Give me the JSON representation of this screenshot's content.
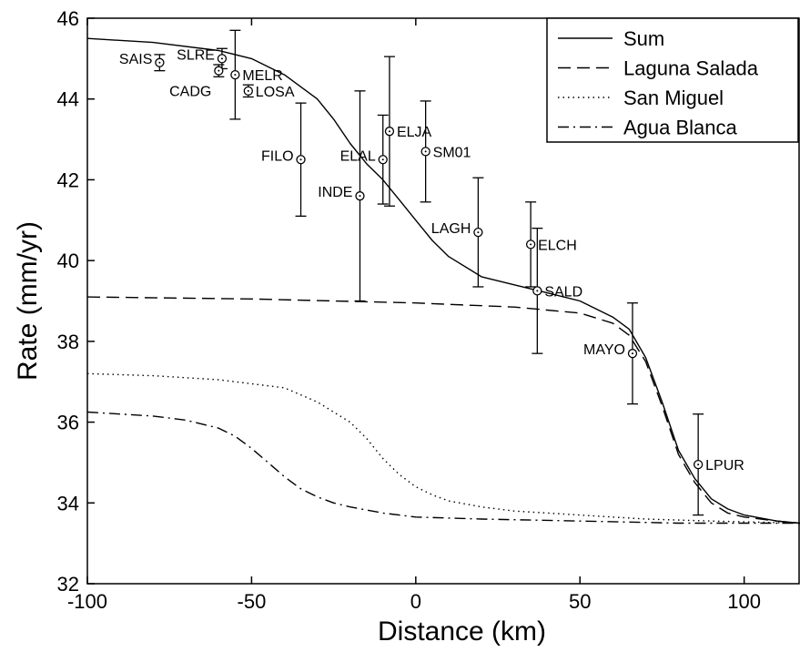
{
  "chart_data": {
    "type": "line",
    "title": "",
    "xlabel": "Distance (km)",
    "ylabel": "Rate (mm/yr)",
    "xlim": [
      -100,
      117
    ],
    "ylim": [
      32,
      46
    ],
    "xticks": [
      -100,
      -50,
      0,
      50,
      100
    ],
    "yticks": [
      32,
      34,
      36,
      38,
      40,
      42,
      44,
      46
    ],
    "grid": false,
    "legend_placement": "top-right",
    "series": [
      {
        "name": "Sum",
        "style": "solid",
        "x": [
          -100,
          -80,
          -60,
          -50,
          -40,
          -30,
          -25,
          -20,
          -15,
          -10,
          -5,
          0,
          5,
          10,
          20,
          30,
          40,
          50,
          60,
          65,
          70,
          75,
          80,
          85,
          90,
          95,
          100,
          110,
          117
        ],
        "y": [
          45.5,
          45.4,
          45.2,
          45.0,
          44.6,
          44.0,
          43.5,
          42.9,
          42.4,
          42.0,
          41.5,
          41.0,
          40.5,
          40.1,
          39.6,
          39.4,
          39.2,
          39.0,
          38.6,
          38.3,
          37.6,
          36.5,
          35.3,
          34.6,
          34.1,
          33.85,
          33.7,
          33.55,
          33.5
        ]
      },
      {
        "name": "Laguna Salada",
        "style": "dashed",
        "x": [
          -100,
          -50,
          0,
          30,
          50,
          60,
          65,
          70,
          75,
          80,
          85,
          90,
          95,
          100,
          110,
          117
        ],
        "y": [
          39.1,
          39.05,
          38.95,
          38.85,
          38.7,
          38.45,
          38.15,
          37.5,
          36.4,
          35.2,
          34.5,
          34.0,
          33.75,
          33.65,
          33.55,
          33.5
        ]
      },
      {
        "name": "San Miguel",
        "style": "dotted",
        "x": [
          -100,
          -80,
          -60,
          -40,
          -30,
          -20,
          -15,
          -10,
          -5,
          0,
          5,
          10,
          20,
          30,
          50,
          70,
          90,
          117
        ],
        "y": [
          37.2,
          37.15,
          37.05,
          36.85,
          36.5,
          36.0,
          35.6,
          35.1,
          34.7,
          34.4,
          34.2,
          34.05,
          33.9,
          33.8,
          33.7,
          33.6,
          33.55,
          33.5
        ]
      },
      {
        "name": "Agua Blanca",
        "style": "dashdot",
        "x": [
          -100,
          -80,
          -70,
          -60,
          -55,
          -50,
          -45,
          -40,
          -35,
          -30,
          -25,
          -20,
          -10,
          0,
          20,
          50,
          80,
          117
        ],
        "y": [
          36.25,
          36.15,
          36.05,
          35.85,
          35.65,
          35.35,
          35.0,
          34.65,
          34.35,
          34.15,
          34.0,
          33.9,
          33.75,
          33.65,
          33.6,
          33.55,
          33.5,
          33.5
        ]
      }
    ],
    "stations": [
      {
        "name": "SAIS",
        "x": -78,
        "y": 44.9,
        "err": 0.2,
        "label_side": "left"
      },
      {
        "name": "SLRE",
        "x": -59,
        "y": 45.0,
        "err": 0.25,
        "label_side": "left"
      },
      {
        "name": "CADG",
        "x": -60,
        "y": 44.7,
        "err": 0.15,
        "label_side": "left-below"
      },
      {
        "name": "MELR",
        "x": -55,
        "y": 44.6,
        "err": 1.1,
        "label_side": "right"
      },
      {
        "name": "LOSA",
        "x": -51,
        "y": 44.2,
        "err": 0.15,
        "label_side": "right"
      },
      {
        "name": "FILO",
        "x": -35,
        "y": 42.5,
        "err": 1.4,
        "label_side": "left"
      },
      {
        "name": "INDE",
        "x": -17,
        "y": 41.6,
        "err": 2.6,
        "label_side": "left"
      },
      {
        "name": "ELAL",
        "x": -10,
        "y": 42.5,
        "err": 1.1,
        "label_side": "left"
      },
      {
        "name": "ELJA",
        "x": -8,
        "y": 43.2,
        "err": 1.85,
        "label_side": "right"
      },
      {
        "name": "SM01",
        "x": 3,
        "y": 42.7,
        "err": 1.25,
        "label_side": "right"
      },
      {
        "name": "LAGH",
        "x": 19,
        "y": 40.7,
        "err": 1.35,
        "label_side": "left"
      },
      {
        "name": "ELCH",
        "x": 35,
        "y": 40.4,
        "err": 1.05,
        "label_side": "right"
      },
      {
        "name": "SALD",
        "x": 37,
        "y": 39.25,
        "err": 1.55,
        "label_side": "right"
      },
      {
        "name": "MAYO",
        "x": 66,
        "y": 37.7,
        "err": 1.25,
        "label_side": "left"
      },
      {
        "name": "LPUR",
        "x": 86,
        "y": 34.95,
        "err": 1.25,
        "label_side": "right"
      }
    ]
  }
}
